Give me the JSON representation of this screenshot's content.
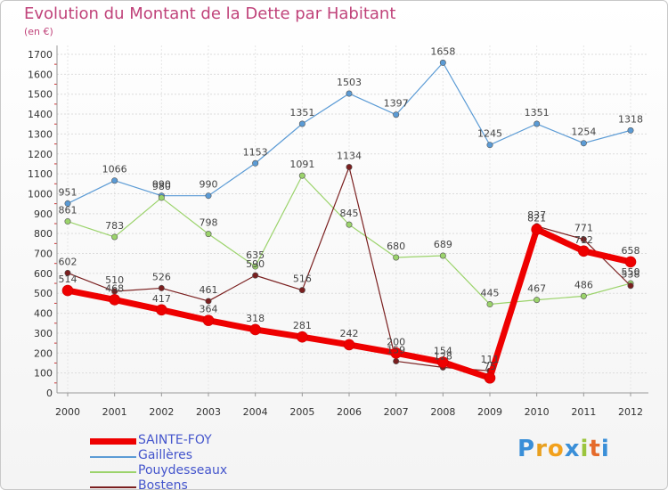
{
  "title": "Evolution du Montant de la Dette par Habitant",
  "subtitle": "(en €)",
  "logo": {
    "text": "Proxiti",
    "letters": [
      "P",
      "r",
      "o",
      "x",
      "i",
      "t",
      "i"
    ],
    "colors": [
      "#3a8fd8",
      "#e8a020",
      "#f2a11d",
      "#3a8fd8",
      "#9bc53d",
      "#e56b2b",
      "#3a8fd8"
    ]
  },
  "chart_data": {
    "type": "line",
    "title": "Evolution du Montant de la Dette par Habitant",
    "subtitle": "(en €)",
    "xlabel": "",
    "ylabel": "",
    "categories": [
      "2000",
      "2001",
      "2002",
      "2003",
      "2004",
      "2005",
      "2006",
      "2007",
      "2008",
      "2009",
      "2010",
      "2011",
      "2012"
    ],
    "ylim": [
      0,
      1700
    ],
    "yticks": [
      0,
      100,
      200,
      300,
      400,
      500,
      600,
      700,
      800,
      900,
      1000,
      1100,
      1200,
      1300,
      1400,
      1500,
      1600,
      1700
    ],
    "grid": true,
    "legend_position": "bottom-left",
    "series": [
      {
        "name": "Gaillères",
        "color": "#5b9bd5",
        "values": [
          951,
          1066,
          990,
          990,
          1153,
          1351,
          1503,
          1397,
          1658,
          1245,
          1351,
          1254,
          1318
        ],
        "labels": [
          "951",
          "1066",
          "990",
          "990",
          "1153",
          "1351",
          "1503",
          "1397",
          "1658",
          "1245",
          "1351",
          "1254",
          "1318"
        ]
      },
      {
        "name": "Pouydesseaux",
        "color": "#9bd36b",
        "values": [
          861,
          783,
          980,
          798,
          635,
          1091,
          845,
          680,
          689,
          445,
          467,
          486,
          550
        ],
        "labels": [
          "861",
          "783",
          "980",
          "798",
          "635",
          "1091",
          "845",
          "680",
          "689",
          "445",
          "467",
          "486",
          "550"
        ]
      },
      {
        "name": "Bostens",
        "color": "#7a1f1f",
        "values": [
          602,
          510,
          526,
          461,
          590,
          516,
          1134,
          159,
          128,
          111,
          837,
          771,
          538
        ],
        "labels": [
          "602",
          "510",
          "526",
          "461",
          "590",
          "516",
          "1134",
          "159",
          "128",
          "111",
          "837",
          "771",
          "538"
        ]
      },
      {
        "name": "SAINTE-FOY",
        "color": "#ee0000",
        "values": [
          514,
          468,
          417,
          364,
          318,
          281,
          242,
          200,
          154,
          75,
          821,
          712,
          658
        ],
        "labels": [
          "514",
          "468",
          "417",
          "364",
          "318",
          "281",
          "242",
          "200",
          "154",
          "75",
          "821",
          "712",
          "658"
        ]
      }
    ],
    "legend_order": [
      "SAINTE-FOY",
      "Gaillères",
      "Pouydesseaux",
      "Bostens"
    ]
  }
}
